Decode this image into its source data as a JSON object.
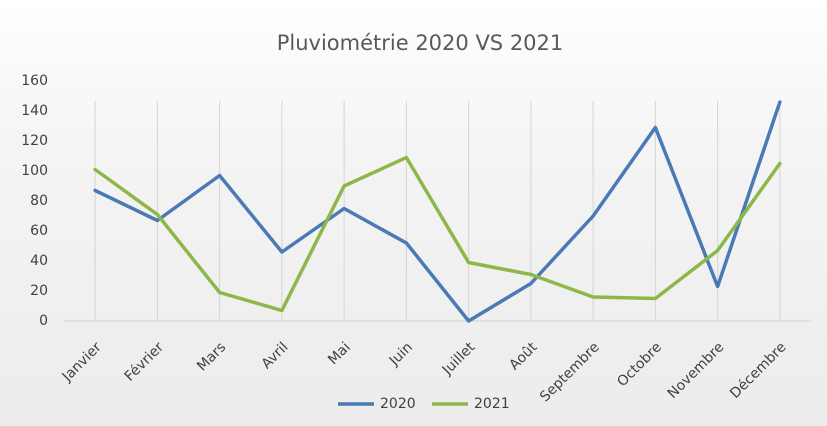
{
  "chart_data": {
    "type": "line",
    "title": "Pluviométrie  2020 VS 2021",
    "categories": [
      "Janvier",
      "Février",
      "Mars",
      "Avril",
      "Mai",
      "Juin",
      "Juillet",
      "Août",
      "Septembre",
      "Octobre",
      "Novembre",
      "Décembre"
    ],
    "series": [
      {
        "name": "2020",
        "color": "#4a7ab5",
        "values": [
          87,
          67,
          97,
          46,
          75,
          52,
          0,
          25,
          70,
          129,
          23,
          146
        ]
      },
      {
        "name": "2021",
        "color": "#8db749",
        "values": [
          101,
          71,
          19,
          7,
          90,
          109,
          39,
          31,
          16,
          15,
          47,
          105
        ]
      }
    ],
    "ylim": [
      0,
      160
    ],
    "yticks": [
      0,
      20,
      40,
      60,
      80,
      100,
      120,
      140,
      160
    ],
    "grid": "vertical",
    "legend": "bottom"
  }
}
